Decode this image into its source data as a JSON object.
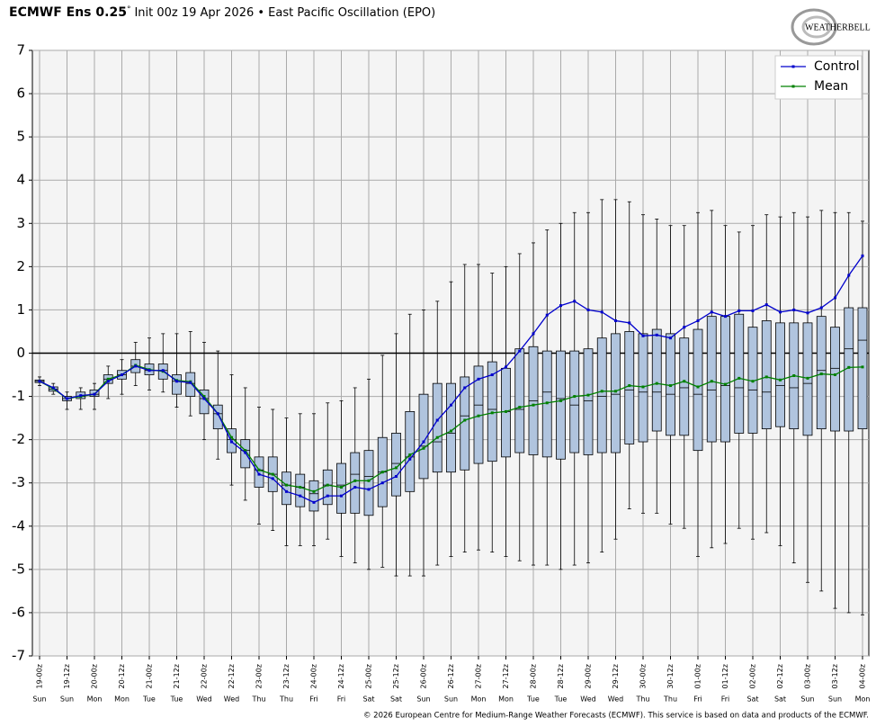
{
  "chart_data": {
    "type": "boxplot-timeseries",
    "title": "ECMWF Ens 0.25",
    "title_degree": "°",
    "subtitle": "Init 00z 19 Apr 2026 • East Pacific Oscillation (EPO)",
    "logo": "WEATHERBELL",
    "footer": "© 2026 European Centre for Medium-Range Weather Forecasts (ECMWF). This service is based on data and products of the ECMWF.",
    "categories": [
      "19-00z",
      null,
      "19-12z",
      null,
      "20-00z",
      null,
      "20-12z",
      null,
      "21-00z",
      null,
      "21-12z",
      null,
      "22-00z",
      null,
      "22-12z",
      null,
      "23-00z",
      null,
      "23-12z",
      null,
      "24-00z",
      null,
      "24-12z",
      null,
      "25-00z",
      null,
      "25-12z",
      null,
      "26-00z",
      null,
      "26-12z",
      null,
      "27-00z",
      null,
      "27-12z",
      null,
      "28-00z",
      null,
      "28-12z",
      null,
      "29-00z",
      null,
      "29-12z",
      null,
      "30-00z",
      null,
      "30-12z",
      null,
      "01-00z",
      null,
      "01-12z",
      null,
      "02-00z",
      null,
      "02-12z",
      null,
      "03-00z",
      null,
      "03-12z",
      null,
      "04-00z"
    ],
    "days": [
      "Sun",
      null,
      "Sun",
      null,
      "Mon",
      null,
      "Mon",
      null,
      "Tue",
      null,
      "Tue",
      null,
      "Wed",
      null,
      "Wed",
      null,
      "Thu",
      null,
      "Thu",
      null,
      "Fri",
      null,
      "Fri",
      null,
      "Sat",
      null,
      "Sat",
      null,
      "Sun",
      null,
      "Sun",
      null,
      "Mon",
      null,
      "Mon",
      null,
      "Tue",
      null,
      "Tue",
      null,
      "Wed",
      null,
      "Wed",
      null,
      "Thu",
      null,
      "Thu",
      null,
      "Fri",
      null,
      "Fri",
      null,
      "Sat",
      null,
      "Sat",
      null,
      "Sun",
      null,
      "Sun",
      null,
      "Mon"
    ],
    "ylim": [
      -7,
      7
    ],
    "yticks": [
      -7,
      -6,
      -5,
      -4,
      -3,
      -2,
      -1,
      0,
      1,
      2,
      3,
      4,
      5,
      6,
      7
    ],
    "grid": true,
    "zero_line": true,
    "legend": "upper right",
    "box_color": "#b0c4de",
    "boxes": {
      "low": [
        -0.75,
        -0.95,
        -1.3,
        -1.3,
        -1.3,
        -1.05,
        -0.95,
        -0.75,
        -0.85,
        -0.9,
        -1.25,
        -1.45,
        -2.0,
        -2.45,
        -3.05,
        -3.4,
        -3.95,
        -4.1,
        -4.45,
        -4.45,
        -4.45,
        -4.3,
        -4.7,
        -4.85,
        -5.0,
        -4.95,
        -5.15,
        -5.15,
        -5.15,
        -4.9,
        -4.7,
        -4.6,
        -4.55,
        -4.6,
        -4.7,
        -4.8,
        -4.9,
        -4.9,
        -5.0,
        -4.9,
        -4.85,
        -4.6,
        -4.3,
        -3.6,
        -3.7,
        -3.7,
        -3.95,
        -4.05,
        -4.7,
        -4.5,
        -4.4,
        -4.05,
        -4.3,
        -4.15,
        -4.45,
        -4.85,
        -5.3,
        -5.5,
        -5.9,
        -6.0,
        -6.05
      ],
      "q1": [
        -0.68,
        -0.88,
        -1.1,
        -1.05,
        -1.0,
        -0.7,
        -0.6,
        -0.45,
        -0.5,
        -0.6,
        -0.95,
        -1.0,
        -1.4,
        -1.75,
        -2.3,
        -2.65,
        -3.1,
        -3.2,
        -3.5,
        -3.55,
        -3.65,
        -3.5,
        -3.7,
        -3.7,
        -3.75,
        -3.55,
        -3.3,
        -3.2,
        -2.9,
        -2.75,
        -2.75,
        -2.7,
        -2.55,
        -2.5,
        -2.4,
        -2.3,
        -2.35,
        -2.4,
        -2.45,
        -2.3,
        -2.35,
        -2.3,
        -2.3,
        -2.1,
        -2.05,
        -1.8,
        -1.9,
        -1.9,
        -2.25,
        -2.05,
        -2.05,
        -1.85,
        -1.85,
        -1.75,
        -1.7,
        -1.75,
        -1.9,
        -1.75,
        -1.8,
        -1.8,
        -1.75
      ],
      "median": [
        -0.65,
        -0.83,
        -1.05,
        -1.0,
        -0.95,
        -0.6,
        -0.5,
        -0.3,
        -0.4,
        -0.4,
        -0.65,
        -0.7,
        -1.05,
        -1.4,
        -2.0,
        -2.25,
        -2.7,
        -2.8,
        -3.05,
        -3.1,
        -3.25,
        -3.05,
        -3.05,
        -2.8,
        -2.85,
        -2.75,
        -2.55,
        -2.4,
        -2.15,
        -2.05,
        -1.85,
        -1.45,
        -1.2,
        -1.3,
        -1.35,
        -1.3,
        -1.1,
        -0.9,
        -1.05,
        -1.2,
        -1.1,
        -1.0,
        -0.95,
        -0.85,
        -0.9,
        -0.9,
        -0.95,
        -0.8,
        -0.95,
        -0.85,
        -0.75,
        -0.8,
        -0.85,
        -0.9,
        -0.75,
        -0.8,
        -0.7,
        -0.4,
        -0.35,
        0.1,
        0.3
      ],
      "q3": [
        -0.62,
        -0.78,
        -1.0,
        -0.9,
        -0.85,
        -0.5,
        -0.4,
        -0.15,
        -0.25,
        -0.25,
        -0.5,
        -0.45,
        -0.85,
        -1.2,
        -1.75,
        -2.0,
        -2.4,
        -2.4,
        -2.75,
        -2.8,
        -2.95,
        -2.7,
        -2.55,
        -2.3,
        -2.25,
        -1.95,
        -1.85,
        -1.35,
        -0.95,
        -0.7,
        -0.7,
        -0.55,
        -0.3,
        -0.2,
        -0.35,
        0.1,
        0.15,
        0.05,
        0.05,
        0.05,
        0.1,
        0.35,
        0.45,
        0.5,
        0.45,
        0.55,
        0.45,
        0.35,
        0.55,
        0.85,
        0.85,
        0.9,
        0.6,
        0.75,
        0.7,
        0.7,
        0.7,
        0.85,
        0.6,
        1.05,
        1.05
      ],
      "high": [
        -0.55,
        -0.7,
        -0.9,
        -0.8,
        -0.7,
        -0.3,
        -0.15,
        0.25,
        0.35,
        0.45,
        0.45,
        0.5,
        0.25,
        0.05,
        -0.5,
        -0.8,
        -1.25,
        -1.3,
        -1.5,
        -1.4,
        -1.4,
        -1.15,
        -1.1,
        -0.8,
        -0.6,
        -0.05,
        0.45,
        0.9,
        1.0,
        1.2,
        1.65,
        2.05,
        2.05,
        1.85,
        2.0,
        2.3,
        2.55,
        2.85,
        3.0,
        3.25,
        3.25,
        3.55,
        3.55,
        3.5,
        3.2,
        3.1,
        2.95,
        2.95,
        3.25,
        3.3,
        2.95,
        2.8,
        2.95,
        3.2,
        3.15,
        3.25,
        3.15,
        3.3,
        3.25,
        3.25,
        3.05
      ]
    },
    "series": [
      {
        "name": "Control",
        "color": "#0000cc",
        "values": [
          -0.65,
          -0.8,
          -1.05,
          -0.98,
          -0.95,
          -0.65,
          -0.5,
          -0.3,
          -0.4,
          -0.4,
          -0.65,
          -0.68,
          -1.05,
          -1.4,
          -2.05,
          -2.3,
          -2.8,
          -2.9,
          -3.2,
          -3.3,
          -3.45,
          -3.3,
          -3.3,
          -3.1,
          -3.15,
          -3.0,
          -2.85,
          -2.45,
          -2.05,
          -1.55,
          -1.2,
          -0.8,
          -0.6,
          -0.5,
          -0.32,
          0.05,
          0.45,
          0.88,
          1.1,
          1.2,
          1.0,
          0.95,
          0.75,
          0.7,
          0.4,
          0.42,
          0.35,
          0.6,
          0.75,
          0.95,
          0.85,
          0.98,
          0.98,
          1.12,
          0.95,
          1.0,
          0.93,
          1.05,
          1.28,
          1.8,
          2.25
        ]
      },
      {
        "name": "Mean",
        "color": "#008000",
        "values": [
          -0.65,
          -0.82,
          -1.05,
          -1.0,
          -0.95,
          -0.6,
          -0.5,
          -0.28,
          -0.38,
          -0.42,
          -0.63,
          -0.66,
          -1.0,
          -1.4,
          -1.95,
          -2.25,
          -2.7,
          -2.8,
          -3.05,
          -3.1,
          -3.2,
          -3.05,
          -3.1,
          -2.95,
          -2.95,
          -2.75,
          -2.65,
          -2.35,
          -2.2,
          -1.95,
          -1.8,
          -1.55,
          -1.45,
          -1.38,
          -1.35,
          -1.25,
          -1.2,
          -1.15,
          -1.1,
          -1.0,
          -0.97,
          -0.88,
          -0.88,
          -0.75,
          -0.78,
          -0.7,
          -0.75,
          -0.65,
          -0.78,
          -0.65,
          -0.72,
          -0.58,
          -0.65,
          -0.55,
          -0.62,
          -0.52,
          -0.58,
          -0.48,
          -0.5,
          -0.33,
          -0.32
        ]
      }
    ]
  }
}
